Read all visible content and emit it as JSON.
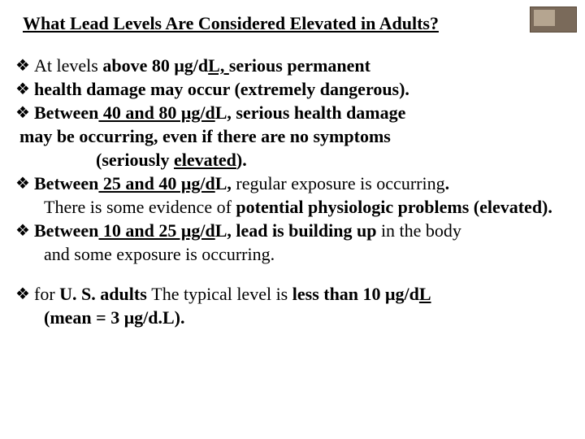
{
  "title": "What Lead Levels Are Considered  Elevated in Adults?",
  "bullet_glyph": "❖",
  "colors": {
    "background": "#ffffff",
    "text": "#000000",
    "logo_outer": "#7a6a5a",
    "logo_inner": "#b5a590",
    "logo_border": "#5a4a3a"
  },
  "typography": {
    "family": "Times New Roman",
    "title_fontsize_pt": 17,
    "body_fontsize_pt": 17,
    "title_bold": true,
    "title_underline": true
  },
  "lines": {
    "l1a": "At levels ",
    "l1b": "above 80 μg/d",
    "l1c": "L, ",
    "l1d": "serious permanent",
    "l2": "health damage may occur (extremely dangerous).",
    "l3a": "Between",
    "l3b": " 40 and 80 μg/d",
    "l3c": "L, serious health damage",
    "l4": "may be occurring, even if there are no symptoms",
    "l5a": "(seriously ",
    "l5b": "elevated",
    "l5c": ").",
    "l6a": "Between",
    "l6b": " 25 and 40 μg/d",
    "l6c": "L, ",
    "l6d": "regular exposure is occurring",
    "l6e": ".",
    "l7a": "There is some evidence of ",
    "l7b": "potential physiologic problems ",
    "l7c": "(elevated).",
    "l8a": "Between",
    "l8b": " 10 and 25 μg/d",
    "l8c": "L, lead is building up ",
    "l8d": "in the body",
    "l9": "and some exposure is occurring.",
    "l10a": "for ",
    "l10b": "U. S. adults ",
    "l10c": "The typical level is ",
    "l10d": "less than 10 μg/d",
    "l10e": "L",
    "l11": "(mean = 3 μg/d.L)."
  }
}
